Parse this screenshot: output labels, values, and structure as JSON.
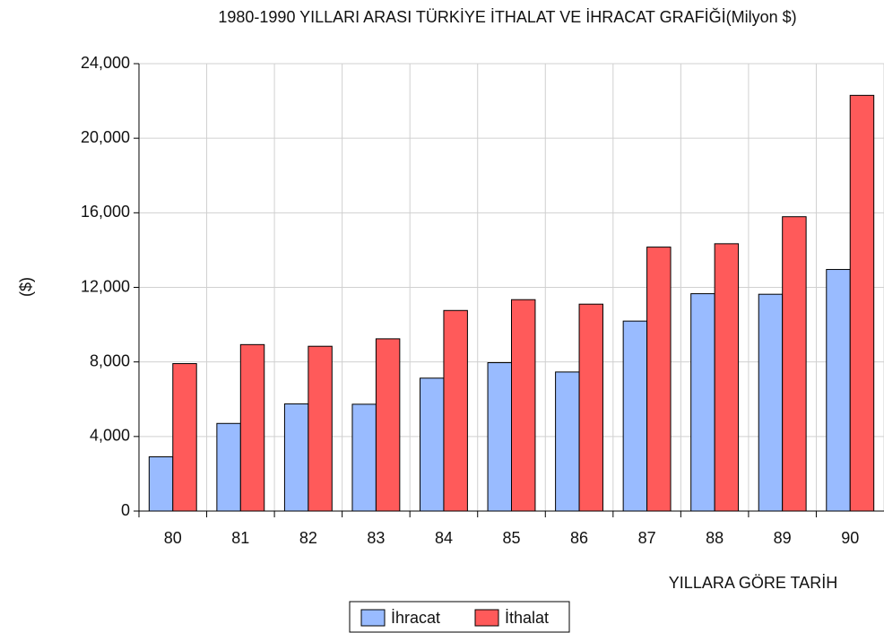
{
  "chart_data": {
    "type": "bar",
    "title": "1980-1990 YILLARI ARASI TÜRKİYE İTHALAT VE İHRACAT GRAFİĞİ(Milyon $)",
    "y_label": "($)",
    "x_label": "YILLARA GÖRE TARİH",
    "categories": [
      "80",
      "81",
      "82",
      "83",
      "84",
      "85",
      "86",
      "87",
      "88",
      "89",
      "90"
    ],
    "series": [
      {
        "name": "İhracat",
        "color": "#99bbff",
        "values": [
          2910,
          4700,
          5750,
          5730,
          7130,
          7960,
          7460,
          10190,
          11660,
          11630,
          12960
        ]
      },
      {
        "name": "İthalat",
        "color": "#ff5a5a",
        "values": [
          7910,
          8930,
          8840,
          9240,
          10760,
          11340,
          11100,
          14160,
          14340,
          15790,
          22300
        ]
      }
    ],
    "ylim": [
      0,
      24000
    ],
    "yticks": [
      0,
      {
        "value": 4000,
        "label": "4,000"
      },
      {
        "value": 8000,
        "label": "8,000"
      },
      {
        "value": 12000,
        "label": "12,000"
      },
      {
        "value": 16000,
        "label": "16,000"
      },
      {
        "value": 20000,
        "label": "20,000"
      },
      {
        "value": 24000,
        "label": "24,000"
      }
    ],
    "grid": true,
    "legend": "bottom"
  }
}
